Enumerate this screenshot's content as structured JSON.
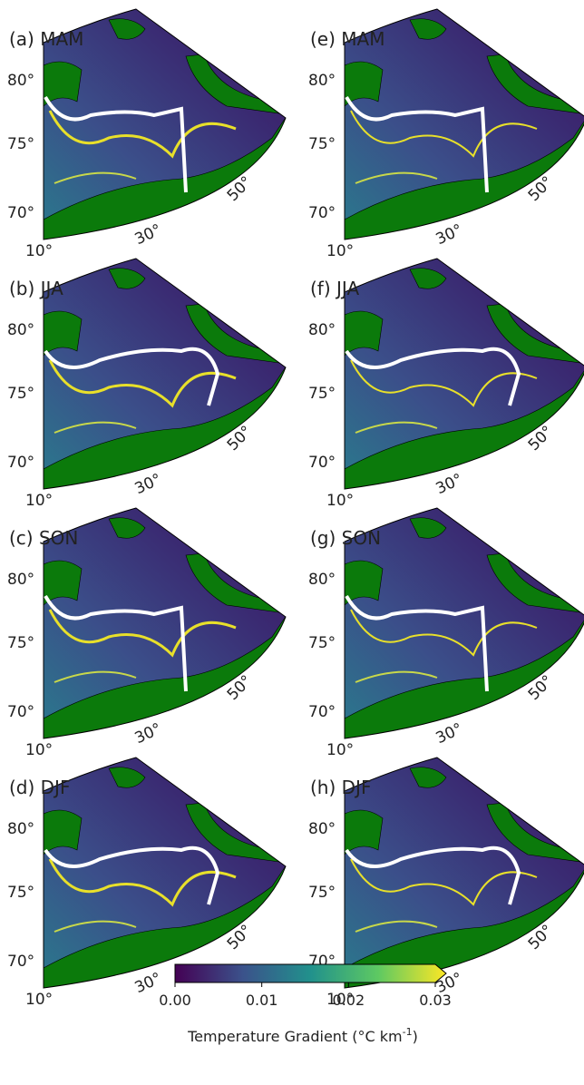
{
  "panels": [
    {
      "label": "(a) MAM"
    },
    {
      "label": "(b) JJA"
    },
    {
      "label": "(c) SON"
    },
    {
      "label": "(d) DJF"
    },
    {
      "label": "(e) MAM"
    },
    {
      "label": "(f) JJA"
    },
    {
      "label": "(g) SON"
    },
    {
      "label": "(h) DJF"
    }
  ],
  "lat_labels": [
    "80°",
    "75°",
    "70°"
  ],
  "lon_labels": [
    "10°",
    "30°",
    "50°"
  ],
  "colorbar": {
    "ticks": [
      "0.00",
      "0.01",
      "0.02",
      "0.03"
    ],
    "label": {
      "text": "Temperature Gradient (°C km",
      "sup": "-1",
      "close": ")"
    }
  }
}
